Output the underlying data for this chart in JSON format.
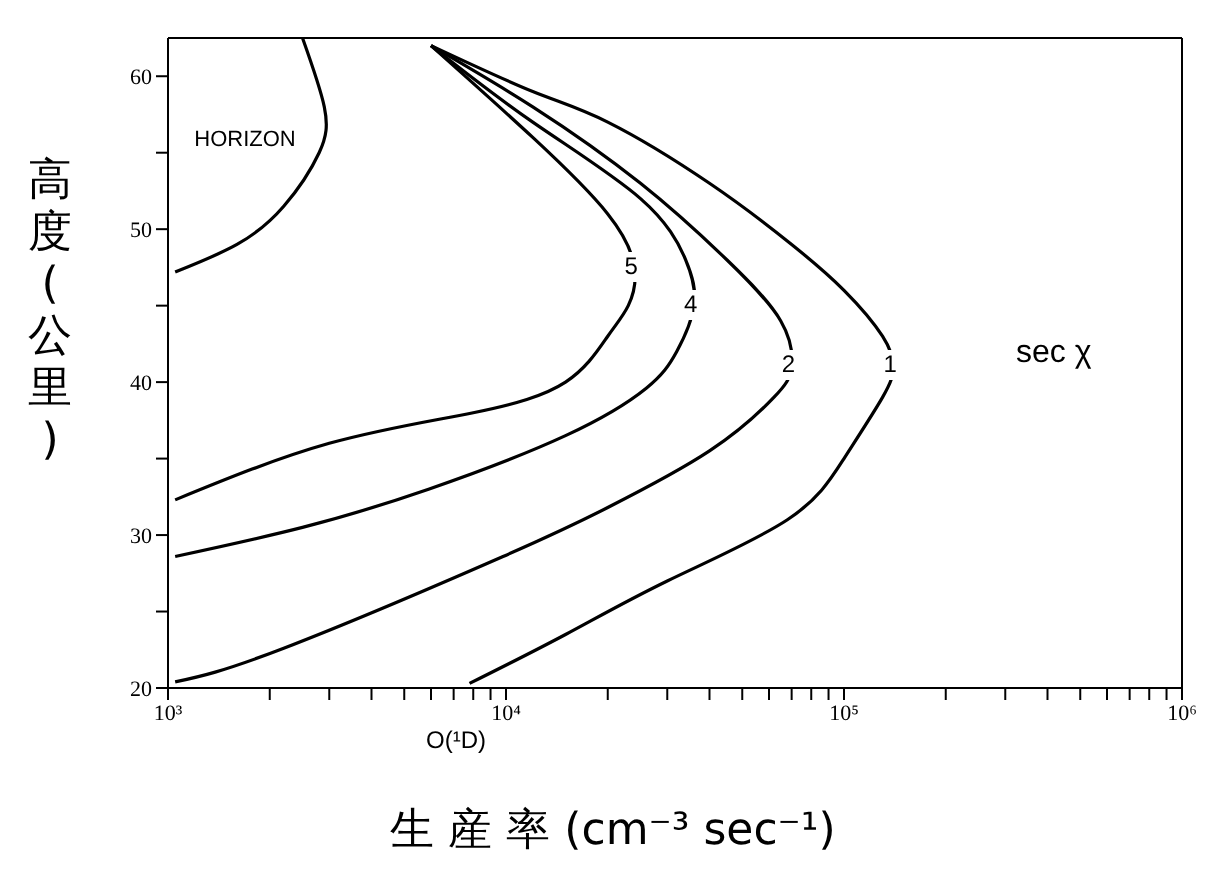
{
  "chart_data": {
    "type": "line",
    "xlabel": "生 産 率 (cm⁻³ sec⁻¹)",
    "ylabel": "高度(公里)",
    "log": "x",
    "xlim": [
      1000,
      1000000
    ],
    "xticks": [
      {
        "value": 1000,
        "label": "10³"
      },
      {
        "value": 2000,
        "label": null
      },
      {
        "value": 3000,
        "label": null
      },
      {
        "value": 4000,
        "label": null
      },
      {
        "value": 5000,
        "label": null
      },
      {
        "value": 6000,
        "label": null
      },
      {
        "value": 7000,
        "label": null
      },
      {
        "value": 8000,
        "label": null
      },
      {
        "value": 9000,
        "label": null
      },
      {
        "value": 10000,
        "label": "10⁴"
      },
      {
        "value": 20000,
        "label": null
      },
      {
        "value": 30000,
        "label": null
      },
      {
        "value": 40000,
        "label": null
      },
      {
        "value": 50000,
        "label": null
      },
      {
        "value": 60000,
        "label": null
      },
      {
        "value": 70000,
        "label": null
      },
      {
        "value": 80000,
        "label": null
      },
      {
        "value": 90000,
        "label": null
      },
      {
        "value": 100000,
        "label": "10⁵"
      },
      {
        "value": 200000,
        "label": null
      },
      {
        "value": 300000,
        "label": null
      },
      {
        "value": 400000,
        "label": null
      },
      {
        "value": 500000,
        "label": null
      },
      {
        "value": 600000,
        "label": null
      },
      {
        "value": 700000,
        "label": null
      },
      {
        "value": 800000,
        "label": null
      },
      {
        "value": 900000,
        "label": null
      },
      {
        "value": 1000000,
        "label": "10⁶"
      }
    ],
    "ylim": [
      20,
      62.5
    ],
    "yticks": [
      20,
      {
        "value": 25,
        "label": null
      },
      30,
      {
        "value": 35,
        "label": null
      },
      40,
      {
        "value": 45,
        "label": null
      },
      50,
      {
        "value": 55,
        "label": null
      },
      60
    ],
    "marker": "none",
    "line_style": "solid",
    "legend": false,
    "annotations": [
      "sec χ",
      "O(¹D)"
    ],
    "series": [
      {
        "name": "HORIZON",
        "color": "#000000",
        "x": [
          2500,
          2900,
          2800,
          2200,
          1600,
          1050
        ],
        "values": [
          62.5,
          58,
          55,
          51.5,
          49,
          47.2
        ]
      },
      {
        "name": "5",
        "color": "#000000",
        "x": [
          6000,
          12000,
          20000,
          24000,
          23000,
          20000,
          15000,
          8000,
          3000,
          1050
        ],
        "values": [
          62,
          56,
          51,
          47.5,
          45,
          43,
          40,
          38,
          36,
          32.3
        ]
      },
      {
        "name": "4",
        "color": "#000000",
        "x": [
          6000,
          12000,
          25000,
          34000,
          36000,
          32000,
          26000,
          15000,
          5900,
          2500,
          1050
        ],
        "values": [
          62,
          57,
          52,
          48,
          45,
          42,
          39.6,
          36.5,
          33,
          30.5,
          28.6
        ]
      },
      {
        "name": "2",
        "color": "#000000",
        "x": [
          6000,
          12000,
          25000,
          45000,
          65000,
          70000,
          62000,
          40000,
          20000,
          9800,
          2200,
          1050
        ],
        "values": [
          62,
          58,
          53,
          48,
          44,
          41,
          39,
          35.5,
          31.8,
          28.6,
          22.6,
          20.4
        ]
      },
      {
        "name": "1",
        "color": "#000000",
        "x": [
          6000,
          12000,
          20000,
          40000,
          70000,
          100000,
          130000,
          140000,
          130000,
          100000,
          68000,
          30000,
          15000,
          7800
        ],
        "values": [
          62,
          59,
          57,
          53,
          49,
          46,
          43,
          41,
          39,
          35,
          31,
          27,
          23.5,
          20.3
        ]
      }
    ]
  }
}
